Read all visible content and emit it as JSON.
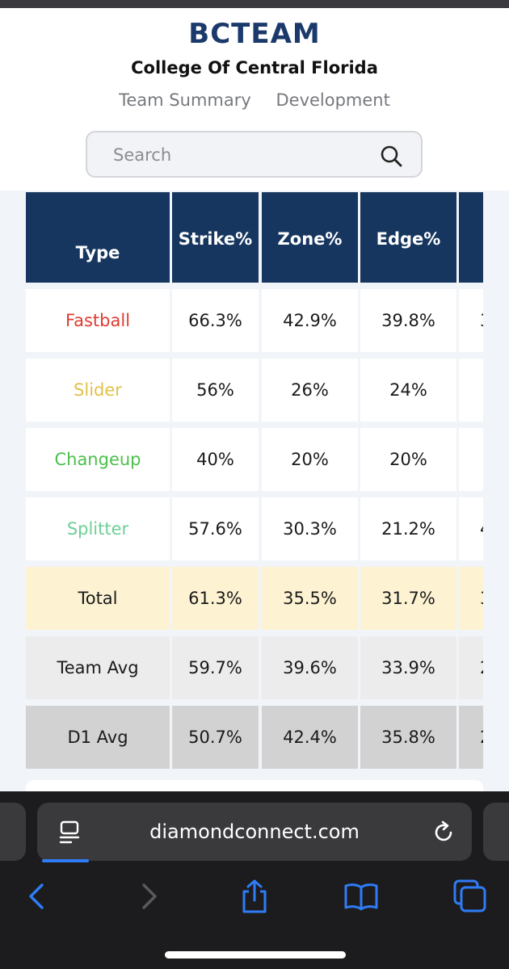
{
  "header": {
    "logo": "BCTEAM",
    "school": "College Of Central Florida",
    "nav": [
      "Team Summary",
      "Development"
    ]
  },
  "search": {
    "placeholder": "Search",
    "value": ""
  },
  "table": {
    "columns": [
      "Type",
      "Strike %",
      "Zone %",
      "Edge %"
    ],
    "rows": [
      {
        "type": "Fastball",
        "values": [
          "66.3%",
          "42.9%",
          "39.8%"
        ],
        "partial": "3",
        "color": "#e03a2f",
        "bg": "#ffffff"
      },
      {
        "type": "Slider",
        "values": [
          "56%",
          "26%",
          "24%"
        ],
        "partial": "",
        "color": "#e3c04a",
        "bg": "#ffffff"
      },
      {
        "type": "Changeup",
        "values": [
          "40%",
          "20%",
          "20%"
        ],
        "partial": "",
        "color": "#4cbf4c",
        "bg": "#ffffff"
      },
      {
        "type": "Splitter",
        "values": [
          "57.6%",
          "30.3%",
          "21.2%"
        ],
        "partial": "4",
        "color": "#6fcf97",
        "bg": "#ffffff"
      },
      {
        "type": "Total",
        "values": [
          "61.3%",
          "35.5%",
          "31.7%"
        ],
        "partial": "3",
        "color": "#1a1a1a",
        "bg": "#fdf3d3"
      },
      {
        "type": "Team Avg",
        "values": [
          "59.7%",
          "39.6%",
          "33.9%"
        ],
        "partial": "2",
        "color": "#1a1a1a",
        "bg": "#ececec"
      },
      {
        "type": "D1 Avg",
        "values": [
          "50.7%",
          "42.4%",
          "35.8%"
        ],
        "partial": "2",
        "color": "#1a1a1a",
        "bg": "#d2d2d2"
      }
    ]
  },
  "browser": {
    "url": "diamondconnect.com",
    "icons": [
      "page-menu-icon",
      "reload-icon",
      "back-icon",
      "forward-icon",
      "share-icon",
      "bookmarks-icon",
      "tabs-icon"
    ]
  },
  "colors": {
    "header_navy": "#17365f",
    "logo": "#1b3a6b",
    "ios_blue": "#2f7cf6"
  }
}
